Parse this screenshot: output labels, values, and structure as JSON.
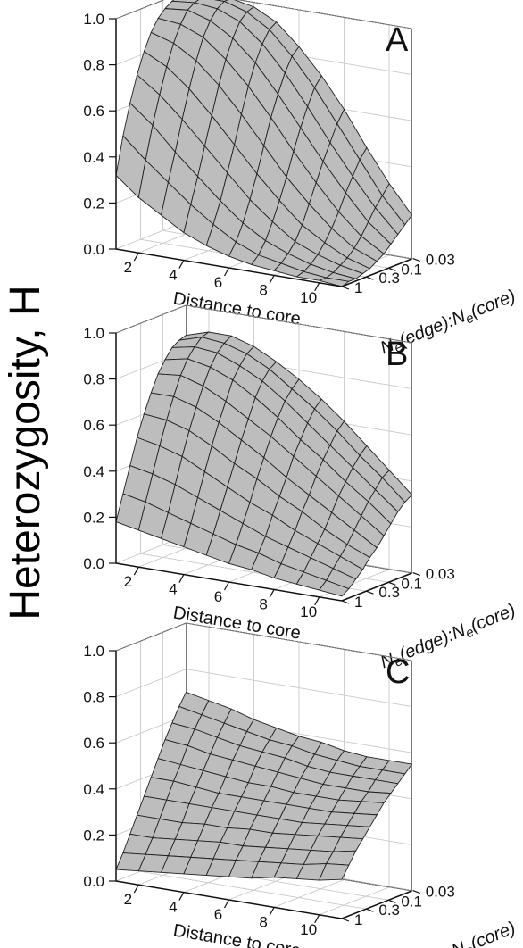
{
  "figure": {
    "shared_ylabel": "Heterozygosity, H"
  },
  "chart_data": [
    {
      "type": "surface",
      "panel_label": "A",
      "xlabel": "Distance to core",
      "ylabel_parts": [
        "N",
        "e",
        "(edge):N",
        "e",
        "(core)"
      ],
      "zlim": [
        0,
        1
      ],
      "x_ticks": [
        "2",
        "4",
        "6",
        "8",
        "10"
      ],
      "y_ticks": [
        "1",
        "0.3",
        "0.1",
        "0.03"
      ],
      "z_ticks": [
        "0.0",
        "0.2",
        "0.4",
        "0.6",
        "0.8",
        "1.0"
      ],
      "x": [
        1,
        2,
        3,
        4,
        5,
        6,
        7,
        8,
        9,
        10,
        11
      ],
      "y_log10": [
        0,
        -0.15,
        -0.3,
        -0.45,
        -0.6,
        -0.75,
        -0.9,
        -1.05,
        -1.2,
        -1.35,
        -1.5
      ],
      "z_rows": [
        [
          0.32,
          0.24,
          0.18,
          0.12,
          0.08,
          0.05,
          0.03,
          0.02,
          0.01,
          0.01,
          0.0
        ],
        [
          0.48,
          0.39,
          0.31,
          0.23,
          0.16,
          0.1,
          0.06,
          0.04,
          0.02,
          0.01,
          0.01
        ],
        [
          0.61,
          0.53,
          0.43,
          0.34,
          0.25,
          0.17,
          0.11,
          0.07,
          0.04,
          0.02,
          0.01
        ],
        [
          0.72,
          0.65,
          0.56,
          0.46,
          0.36,
          0.26,
          0.18,
          0.11,
          0.07,
          0.04,
          0.02
        ],
        [
          0.81,
          0.76,
          0.68,
          0.58,
          0.47,
          0.36,
          0.26,
          0.17,
          0.11,
          0.06,
          0.03
        ],
        [
          0.88,
          0.85,
          0.79,
          0.7,
          0.59,
          0.47,
          0.35,
          0.25,
          0.16,
          0.09,
          0.05
        ],
        [
          0.93,
          0.92,
          0.88,
          0.8,
          0.7,
          0.58,
          0.45,
          0.33,
          0.22,
          0.13,
          0.07
        ],
        [
          0.96,
          0.97,
          0.94,
          0.88,
          0.79,
          0.67,
          0.54,
          0.41,
          0.29,
          0.18,
          0.1
        ],
        [
          0.98,
          0.99,
          0.98,
          0.94,
          0.86,
          0.75,
          0.62,
          0.48,
          0.35,
          0.23,
          0.13
        ],
        [
          0.99,
          1.0,
          1.0,
          0.97,
          0.91,
          0.81,
          0.69,
          0.55,
          0.41,
          0.27,
          0.16
        ],
        [
          0.99,
          1.0,
          1.0,
          0.98,
          0.93,
          0.84,
          0.73,
          0.6,
          0.45,
          0.31,
          0.19
        ]
      ]
    },
    {
      "type": "surface",
      "panel_label": "B",
      "xlabel": "Distance to core",
      "ylabel_parts": [
        "N",
        "e",
        "(edge):N",
        "e",
        "(core)"
      ],
      "zlim": [
        0,
        1
      ],
      "x_ticks": [
        "2",
        "4",
        "6",
        "8",
        "10"
      ],
      "y_ticks": [
        "1",
        "0.3",
        "0.1",
        "0.03"
      ],
      "z_ticks": [
        "0.0",
        "0.2",
        "0.4",
        "0.6",
        "0.8",
        "1.0"
      ],
      "x": [
        1,
        2,
        3,
        4,
        5,
        6,
        7,
        8,
        9,
        10,
        11
      ],
      "y_log10": [
        0,
        -0.15,
        -0.3,
        -0.45,
        -0.6,
        -0.75,
        -0.9,
        -1.05,
        -1.2,
        -1.35,
        -1.5
      ],
      "z_rows": [
        [
          0.18,
          0.16,
          0.14,
          0.12,
          0.1,
          0.08,
          0.07,
          0.05,
          0.04,
          0.03,
          0.02
        ],
        [
          0.29,
          0.27,
          0.24,
          0.21,
          0.18,
          0.15,
          0.13,
          0.1,
          0.08,
          0.06,
          0.04
        ],
        [
          0.4,
          0.38,
          0.35,
          0.31,
          0.27,
          0.23,
          0.19,
          0.16,
          0.13,
          0.1,
          0.07
        ],
        [
          0.51,
          0.49,
          0.46,
          0.41,
          0.36,
          0.31,
          0.27,
          0.22,
          0.18,
          0.14,
          0.1
        ],
        [
          0.6,
          0.59,
          0.56,
          0.51,
          0.45,
          0.4,
          0.34,
          0.29,
          0.23,
          0.18,
          0.14
        ],
        [
          0.68,
          0.68,
          0.65,
          0.6,
          0.54,
          0.48,
          0.41,
          0.35,
          0.29,
          0.23,
          0.17
        ],
        [
          0.75,
          0.76,
          0.73,
          0.68,
          0.62,
          0.56,
          0.49,
          0.42,
          0.35,
          0.28,
          0.21
        ],
        [
          0.8,
          0.82,
          0.8,
          0.76,
          0.7,
          0.63,
          0.55,
          0.48,
          0.4,
          0.33,
          0.25
        ],
        [
          0.84,
          0.86,
          0.85,
          0.81,
          0.76,
          0.69,
          0.61,
          0.53,
          0.45,
          0.37,
          0.29
        ],
        [
          0.86,
          0.89,
          0.88,
          0.85,
          0.8,
          0.73,
          0.66,
          0.58,
          0.49,
          0.41,
          0.32
        ],
        [
          0.87,
          0.9,
          0.9,
          0.87,
          0.82,
          0.76,
          0.69,
          0.61,
          0.52,
          0.43,
          0.34
        ]
      ]
    },
    {
      "type": "surface",
      "panel_label": "C",
      "xlabel": "Distance to core",
      "ylabel_parts": [
        "N",
        "e",
        "(edge):N",
        "e",
        "(core)"
      ],
      "zlim": [
        0,
        1
      ],
      "x_ticks": [
        "2",
        "4",
        "6",
        "8",
        "10"
      ],
      "y_ticks": [
        "1",
        "0.3",
        "0.1",
        "0.03"
      ],
      "z_ticks": [
        "0.0",
        "0.2",
        "0.4",
        "0.6",
        "0.8",
        "1.0"
      ],
      "x": [
        1,
        2,
        3,
        4,
        5,
        6,
        7,
        8,
        9,
        10,
        11
      ],
      "y_log10": [
        0,
        -0.15,
        -0.3,
        -0.45,
        -0.6,
        -0.75,
        -0.9,
        -1.05,
        -1.2,
        -1.35,
        -1.5
      ],
      "z_rows": [
        [
          0.05,
          0.06,
          0.07,
          0.08,
          0.09,
          0.1,
          0.11,
          0.13,
          0.14,
          0.15,
          0.17
        ],
        [
          0.11,
          0.12,
          0.13,
          0.14,
          0.15,
          0.16,
          0.17,
          0.18,
          0.19,
          0.21,
          0.22
        ],
        [
          0.18,
          0.18,
          0.19,
          0.2,
          0.21,
          0.21,
          0.22,
          0.23,
          0.24,
          0.25,
          0.27
        ],
        [
          0.25,
          0.25,
          0.25,
          0.26,
          0.26,
          0.27,
          0.27,
          0.28,
          0.29,
          0.3,
          0.31
        ],
        [
          0.32,
          0.32,
          0.32,
          0.32,
          0.32,
          0.32,
          0.32,
          0.32,
          0.33,
          0.34,
          0.35
        ],
        [
          0.39,
          0.39,
          0.38,
          0.37,
          0.37,
          0.37,
          0.37,
          0.37,
          0.37,
          0.38,
          0.39
        ],
        [
          0.46,
          0.45,
          0.44,
          0.43,
          0.42,
          0.42,
          0.41,
          0.41,
          0.41,
          0.42,
          0.43
        ],
        [
          0.53,
          0.52,
          0.5,
          0.49,
          0.48,
          0.47,
          0.46,
          0.45,
          0.45,
          0.45,
          0.46
        ],
        [
          0.59,
          0.58,
          0.56,
          0.54,
          0.53,
          0.52,
          0.5,
          0.49,
          0.49,
          0.49,
          0.49
        ],
        [
          0.65,
          0.63,
          0.61,
          0.59,
          0.57,
          0.56,
          0.54,
          0.53,
          0.52,
          0.52,
          0.52
        ],
        [
          0.7,
          0.68,
          0.66,
          0.63,
          0.61,
          0.59,
          0.58,
          0.56,
          0.55,
          0.55,
          0.55
        ]
      ]
    }
  ]
}
